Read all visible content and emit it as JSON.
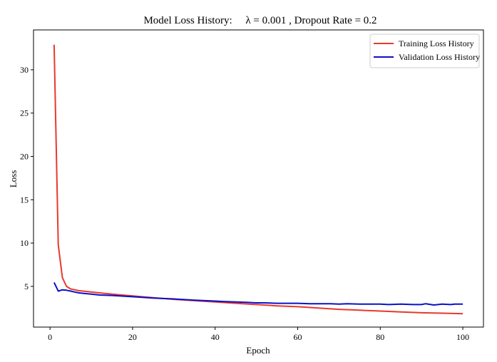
{
  "chart_data": {
    "type": "line",
    "title": "Model Loss History:     λ = 0.001 , Dropout Rate = 0.2",
    "xlabel": "Epoch",
    "ylabel": "Loss",
    "xlim": [
      -4,
      105
    ],
    "ylim": [
      0.3,
      34.6
    ],
    "xticks": [
      0,
      20,
      40,
      60,
      80,
      100
    ],
    "yticks": [
      5,
      10,
      15,
      20,
      25,
      30
    ],
    "grid": false,
    "legend_position": "top-right",
    "series": [
      {
        "name": "Training Loss History",
        "color": "#e8392b",
        "x": [
          1,
          2,
          3,
          4,
          5,
          6,
          7,
          8,
          10,
          12,
          15,
          20,
          25,
          30,
          35,
          40,
          45,
          50,
          55,
          60,
          65,
          70,
          75,
          80,
          85,
          90,
          95,
          100
        ],
        "y": [
          32.9,
          9.8,
          6.0,
          5.0,
          4.7,
          4.6,
          4.5,
          4.45,
          4.35,
          4.25,
          4.1,
          3.9,
          3.7,
          3.5,
          3.35,
          3.2,
          3.05,
          2.9,
          2.75,
          2.65,
          2.5,
          2.35,
          2.25,
          2.15,
          2.05,
          1.95,
          1.9,
          1.85
        ]
      },
      {
        "name": "Validation Loss History",
        "color": "#0a10c8",
        "x": [
          1,
          2,
          3,
          4,
          5,
          6,
          7,
          8,
          10,
          12,
          15,
          20,
          25,
          30,
          35,
          40,
          42,
          45,
          48,
          50,
          52,
          55,
          58,
          60,
          63,
          65,
          68,
          70,
          72,
          75,
          78,
          80,
          82,
          85,
          88,
          90,
          91,
          93,
          95,
          97,
          98,
          100
        ],
        "y": [
          5.45,
          4.45,
          4.6,
          4.55,
          4.45,
          4.35,
          4.25,
          4.2,
          4.1,
          4.0,
          3.95,
          3.8,
          3.65,
          3.55,
          3.4,
          3.3,
          3.25,
          3.2,
          3.15,
          3.1,
          3.1,
          3.05,
          3.05,
          3.05,
          3.0,
          3.0,
          3.0,
          2.95,
          3.0,
          2.95,
          2.95,
          2.95,
          2.9,
          2.95,
          2.9,
          2.9,
          3.0,
          2.85,
          2.95,
          2.9,
          2.95,
          2.95
        ]
      }
    ]
  }
}
